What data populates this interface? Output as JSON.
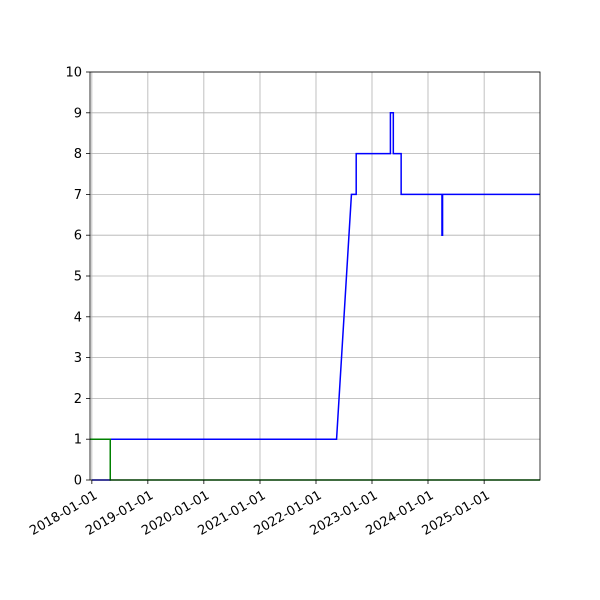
{
  "chart_data": {
    "type": "line",
    "title": "",
    "xlabel": "",
    "ylabel": "",
    "grid": true,
    "xlim": [
      "2017-12-20",
      "2025-12-31"
    ],
    "ylim": [
      0,
      10
    ],
    "xticks": [
      "2018-01-01",
      "2019-01-01",
      "2020-01-01",
      "2021-01-01",
      "2022-01-01",
      "2023-01-01",
      "2024-01-01",
      "2025-01-01"
    ],
    "yticks": [
      "0",
      "1",
      "2",
      "3",
      "4",
      "5",
      "6",
      "7",
      "8",
      "9",
      "10"
    ],
    "series": [
      {
        "color": "#0000ff",
        "points": [
          [
            "2018-01-01",
            0
          ],
          [
            "2018-05-01",
            0
          ],
          [
            "2018-05-01",
            1
          ],
          [
            "2022-05-15",
            1
          ],
          [
            "2022-08-20",
            7
          ],
          [
            "2022-09-20",
            7
          ],
          [
            "2022-09-20",
            8
          ],
          [
            "2023-05-01",
            8
          ],
          [
            "2023-05-01",
            9
          ],
          [
            "2023-05-20",
            9
          ],
          [
            "2023-05-20",
            8
          ],
          [
            "2023-07-10",
            8
          ],
          [
            "2023-07-10",
            7
          ],
          [
            "2024-04-01",
            7
          ],
          [
            "2024-04-01",
            6
          ],
          [
            "2024-04-05",
            6
          ],
          [
            "2024-04-05",
            7
          ],
          [
            "2025-12-31",
            7
          ]
        ]
      },
      {
        "color": "#008000",
        "points": [
          [
            "2017-12-20",
            1
          ],
          [
            "2018-05-01",
            1
          ],
          [
            "2018-05-01",
            0
          ],
          [
            "2025-12-31",
            0
          ]
        ]
      }
    ]
  }
}
